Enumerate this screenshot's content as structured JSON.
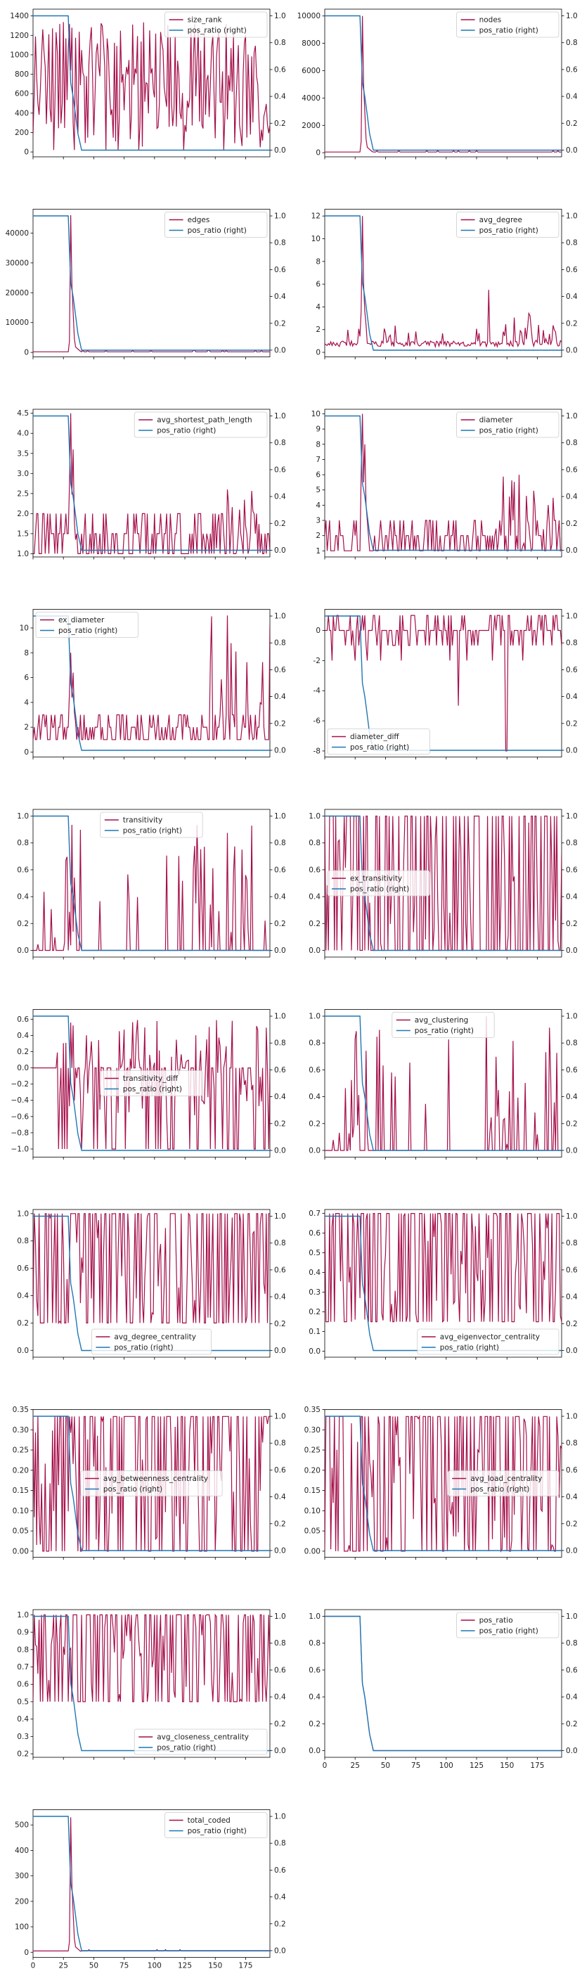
{
  "figure": {
    "x_ticks": [
      "0",
      "25",
      "50",
      "75",
      "100",
      "125",
      "150",
      "175"
    ]
  },
  "colors": {
    "primary": "#a50f4a",
    "pos_ratio": "#1f77b4"
  },
  "chart_data": [
    {
      "type": "line",
      "name": "size_rank",
      "legend_loc": "upper-right",
      "ylim": [
        -50,
        1470
      ],
      "yticks": [
        0,
        200,
        400,
        600,
        800,
        1000,
        1200,
        1400
      ],
      "xlim": [
        0,
        195
      ],
      "show_xticklabels": false,
      "shape": "noisy",
      "base": 700,
      "amp": 650,
      "sparse": 0.0,
      "tail_scale": 1.0,
      "neg": false,
      "series": [
        {
          "name": "size_rank",
          "axis": "left"
        },
        {
          "name": "pos_ratio (right)",
          "axis": "right"
        }
      ]
    },
    {
      "type": "line",
      "name": "nodes",
      "legend_loc": "upper-right",
      "ylim": [
        -300,
        10500
      ],
      "yticks": [
        0,
        2000,
        4000,
        6000,
        8000,
        10000
      ],
      "xlim": [
        0,
        195
      ],
      "show_xticklabels": false,
      "shape": "spike",
      "peak": 10000,
      "base": 50,
      "series": [
        {
          "name": "nodes",
          "axis": "left"
        },
        {
          "name": "pos_ratio (right)",
          "axis": "right"
        }
      ]
    },
    {
      "type": "line",
      "name": "edges",
      "legend_loc": "upper-right",
      "ylim": [
        -1500,
        48000
      ],
      "yticks": [
        0,
        10000,
        20000,
        30000,
        40000
      ],
      "xlim": [
        0,
        195
      ],
      "show_xticklabels": false,
      "shape": "spike",
      "peak": 46000,
      "base": 200,
      "series": [
        {
          "name": "edges",
          "axis": "left"
        },
        {
          "name": "pos_ratio (right)",
          "axis": "right"
        }
      ]
    },
    {
      "type": "line",
      "name": "avg_degree",
      "legend_loc": "upper-right",
      "ylim": [
        -0.4,
        12.6
      ],
      "yticks": [
        0,
        2,
        4,
        6,
        8,
        10,
        12
      ],
      "xlim": [
        0,
        195
      ],
      "show_xticklabels": false,
      "shape": "lowspiky",
      "base": 0.5,
      "peak": 12,
      "tailmax": 5.5,
      "series": [
        {
          "name": "avg_degree",
          "axis": "left"
        },
        {
          "name": "pos_ratio (right)",
          "axis": "right"
        }
      ]
    },
    {
      "type": "line",
      "name": "avg_shortest_path_length",
      "legend_loc": "upper-right",
      "ylim": [
        0.92,
        4.6
      ],
      "yticks": [
        1.0,
        1.5,
        2.0,
        2.5,
        3.0,
        3.5,
        4.0,
        4.5
      ],
      "xlim": [
        0,
        195
      ],
      "show_xticklabels": false,
      "shape": "steps",
      "base": 1.0,
      "peak": 4.5,
      "tailmax": 2.6,
      "series": [
        {
          "name": "avg_shortest_path_length",
          "axis": "left"
        },
        {
          "name": "pos_ratio (right)",
          "axis": "right"
        }
      ]
    },
    {
      "type": "line",
      "name": "diameter",
      "legend_loc": "upper-right",
      "ylim": [
        0.6,
        10.3
      ],
      "yticks": [
        1,
        2,
        3,
        4,
        5,
        6,
        7,
        8,
        9,
        10
      ],
      "xlim": [
        0,
        195
      ],
      "show_xticklabels": false,
      "shape": "steps",
      "base": 1,
      "peak": 10,
      "tailmax": 6,
      "series": [
        {
          "name": "diameter",
          "axis": "left"
        },
        {
          "name": "pos_ratio (right)",
          "axis": "right"
        }
      ]
    },
    {
      "type": "line",
      "name": "ex_diameter",
      "legend_loc": "upper-left",
      "ylim": [
        -0.4,
        11.5
      ],
      "yticks": [
        0,
        2,
        4,
        6,
        8,
        10
      ],
      "xlim": [
        0,
        195
      ],
      "show_xticklabels": false,
      "shape": "steps",
      "base": 1,
      "peak": 8,
      "tailmax": 11,
      "series": [
        {
          "name": "ex_diameter",
          "axis": "left"
        },
        {
          "name": "pos_ratio (right)",
          "axis": "right"
        }
      ]
    },
    {
      "type": "line",
      "name": "diameter_diff",
      "legend_loc": "lower-left",
      "ylim": [
        -8.4,
        1.4
      ],
      "yticks": [
        -8,
        -6,
        -4,
        -2,
        0
      ],
      "xlim": [
        0,
        195
      ],
      "show_xticklabels": false,
      "shape": "diff",
      "base": 0,
      "peak": 1,
      "low": -8,
      "series": [
        {
          "name": "diameter_diff",
          "axis": "left"
        },
        {
          "name": "pos_ratio (right)",
          "axis": "right"
        }
      ]
    },
    {
      "type": "line",
      "name": "transitivity",
      "legend_loc": "upper-center",
      "ylim": [
        -0.05,
        1.05
      ],
      "yticks": [
        0.0,
        0.2,
        0.4,
        0.6,
        0.8,
        1.0
      ],
      "xlim": [
        0,
        195
      ],
      "show_xticklabels": false,
      "shape": "binary_sparse",
      "series": [
        {
          "name": "transitivity",
          "axis": "left"
        },
        {
          "name": "pos_ratio (right)",
          "axis": "right"
        }
      ]
    },
    {
      "type": "line",
      "name": "ex_transitivity",
      "legend_loc": "center-left",
      "ylim": [
        -0.05,
        1.05
      ],
      "yticks": [
        0.0,
        0.2,
        0.4,
        0.6,
        0.8,
        1.0
      ],
      "xlim": [
        0,
        195
      ],
      "show_xticklabels": false,
      "shape": "binary_dense",
      "series": [
        {
          "name": "ex_transitivity",
          "axis": "left"
        },
        {
          "name": "pos_ratio (right)",
          "axis": "right"
        }
      ]
    },
    {
      "type": "line",
      "name": "transitivity_diff",
      "legend_loc": "center",
      "ylim": [
        -1.1,
        0.72
      ],
      "yticks": [
        -1.0,
        -0.8,
        -0.6,
        -0.4,
        -0.2,
        0.0,
        0.2,
        0.4,
        0.6
      ],
      "xlim": [
        0,
        195
      ],
      "show_xticklabels": false,
      "shape": "tdiff",
      "series": [
        {
          "name": "transitivity_diff",
          "axis": "left"
        },
        {
          "name": "pos_ratio (right)",
          "axis": "right"
        }
      ]
    },
    {
      "type": "line",
      "name": "avg_clustering",
      "legend_loc": "upper-center",
      "ylim": [
        -0.05,
        1.05
      ],
      "yticks": [
        0.0,
        0.2,
        0.4,
        0.6,
        0.8,
        1.0
      ],
      "xlim": [
        0,
        195
      ],
      "show_xticklabels": false,
      "shape": "binary_sparse",
      "series": [
        {
          "name": "avg_clustering",
          "axis": "left"
        },
        {
          "name": "pos_ratio (right)",
          "axis": "right"
        }
      ]
    },
    {
      "type": "line",
      "name": "avg_degree_centrality",
      "legend_loc": "lower-center",
      "ylim": [
        -0.05,
        1.03
      ],
      "yticks": [
        0.0,
        0.2,
        0.4,
        0.6,
        0.8,
        1.0
      ],
      "xlim": [
        0,
        195
      ],
      "show_xticklabels": false,
      "shape": "high_dense",
      "lo": 0.2,
      "hi": 1.0,
      "series": [
        {
          "name": "avg_degree_centrality",
          "axis": "left"
        },
        {
          "name": "pos_ratio (right)",
          "axis": "right"
        }
      ]
    },
    {
      "type": "line",
      "name": "avg_eigenvector_centrality",
      "legend_loc": "lower-right",
      "ylim": [
        -0.03,
        0.72
      ],
      "yticks": [
        0.0,
        0.1,
        0.2,
        0.3,
        0.4,
        0.5,
        0.6,
        0.7
      ],
      "xlim": [
        0,
        195
      ],
      "show_xticklabels": false,
      "shape": "high_dense",
      "lo": 0.15,
      "hi": 0.7,
      "series": [
        {
          "name": "avg_eigenvector_centrality",
          "axis": "left"
        },
        {
          "name": "pos_ratio (right)",
          "axis": "right"
        }
      ]
    },
    {
      "type": "line",
      "name": "avg_betweenness_centrality",
      "legend_loc": "center",
      "ylim": [
        -0.015,
        0.35
      ],
      "yticks": [
        0.0,
        0.05,
        0.1,
        0.15,
        0.2,
        0.25,
        0.3,
        0.35
      ],
      "xlim": [
        0,
        195
      ],
      "show_xticklabels": false,
      "shape": "high_dense",
      "lo": 0.0,
      "hi": 0.333,
      "series": [
        {
          "name": "avg_betweenness_centrality",
          "axis": "left"
        },
        {
          "name": "pos_ratio (right)",
          "axis": "right"
        }
      ]
    },
    {
      "type": "line",
      "name": "avg_load_centrality",
      "legend_loc": "center-right",
      "ylim": [
        -0.015,
        0.35
      ],
      "yticks": [
        0.0,
        0.05,
        0.1,
        0.15,
        0.2,
        0.25,
        0.3,
        0.35
      ],
      "xlim": [
        0,
        195
      ],
      "show_xticklabels": false,
      "shape": "high_dense",
      "lo": 0.0,
      "hi": 0.333,
      "series": [
        {
          "name": "avg_load_centrality",
          "axis": "left"
        },
        {
          "name": "pos_ratio (right)",
          "axis": "right"
        }
      ]
    },
    {
      "type": "line",
      "name": "avg_closeness_centrality",
      "legend_loc": "lower-right",
      "ylim": [
        0.18,
        1.03
      ],
      "yticks": [
        0.2,
        0.3,
        0.4,
        0.5,
        0.6,
        0.7,
        0.8,
        0.9,
        1.0
      ],
      "xlim": [
        0,
        195
      ],
      "show_xticklabels": false,
      "shape": "high_dense",
      "lo": 0.5,
      "hi": 1.0,
      "series": [
        {
          "name": "avg_closeness_centrality",
          "axis": "left"
        },
        {
          "name": "pos_ratio (right)",
          "axis": "right"
        }
      ]
    },
    {
      "type": "line",
      "name": "pos_ratio",
      "legend_loc": "upper-right",
      "ylim": [
        -0.05,
        1.05
      ],
      "yticks": [
        0.0,
        0.2,
        0.4,
        0.6,
        0.8,
        1.0
      ],
      "xlim": [
        0,
        195
      ],
      "show_xticklabels": true,
      "shape": "posratio",
      "series": [
        {
          "name": "pos_ratio",
          "axis": "left"
        },
        {
          "name": "pos_ratio (right)",
          "axis": "right"
        }
      ]
    },
    {
      "type": "line",
      "name": "total_coded",
      "legend_loc": "upper-right",
      "ylim": [
        -20,
        560
      ],
      "yticks": [
        0,
        100,
        200,
        300,
        400,
        500
      ],
      "xlim": [
        0,
        195
      ],
      "show_xticklabels": true,
      "shape": "spike",
      "peak": 530,
      "base": 5,
      "series": [
        {
          "name": "total_coded",
          "axis": "left"
        },
        {
          "name": "pos_ratio (right)",
          "axis": "right"
        }
      ]
    }
  ]
}
